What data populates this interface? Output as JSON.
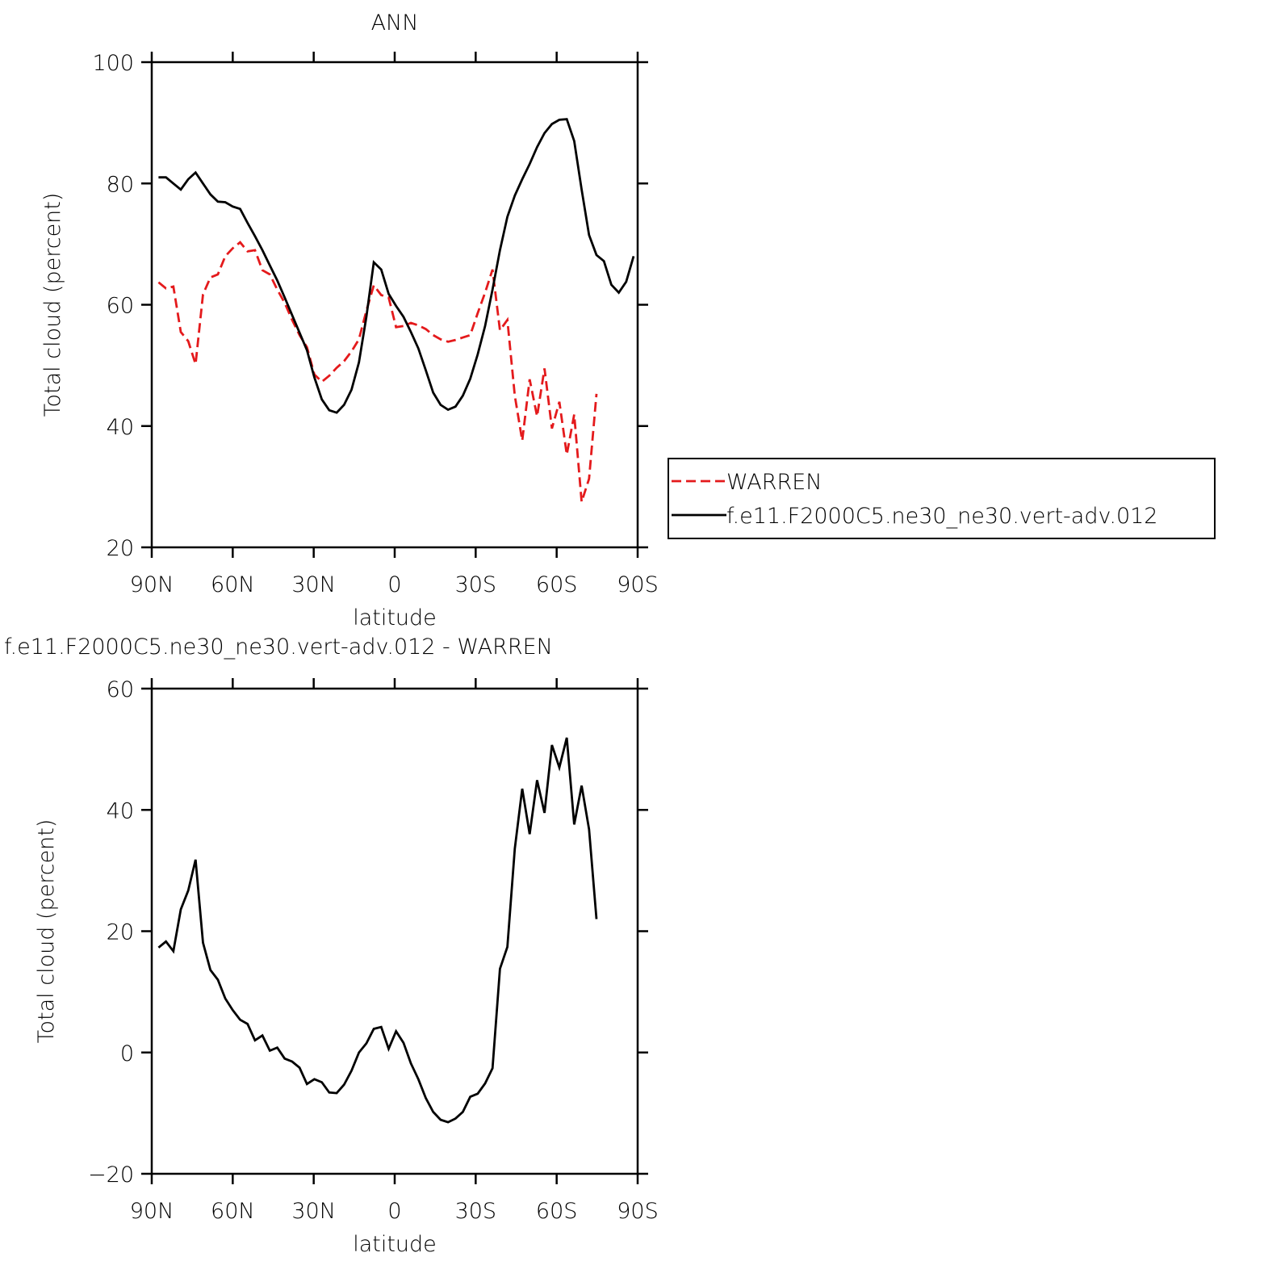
{
  "chart_data": [
    {
      "type": "line",
      "title": "ANN",
      "xlabel": "latitude",
      "ylabel": "Total cloud (percent)",
      "x": [
        87.5,
        84.75,
        82,
        79.25,
        76.5,
        73.75,
        71,
        68.25,
        65.5,
        62.75,
        60,
        57.25,
        54.5,
        51.75,
        49,
        46.25,
        43.5,
        40.75,
        38,
        35.25,
        32.5,
        29.75,
        27,
        24.25,
        21.5,
        18.75,
        16,
        13.25,
        10.5,
        7.75,
        5,
        2.25,
        -0.5,
        -3.25,
        -6,
        -8.75,
        -11.5,
        -14.25,
        -17,
        -19.75,
        -22.5,
        -25.25,
        -28,
        -30.75,
        -33.5,
        -36.25,
        -39,
        -41.75,
        -44.5,
        -47.25,
        -50,
        -52.75,
        -55.5,
        -58.25,
        -61,
        -63.75,
        -66.5,
        -69.25,
        -72,
        -74.75,
        -77.5,
        -80.25,
        -83,
        -85.75,
        -88.5
      ],
      "series": [
        {
          "name": "WARREN",
          "color": "#e41a1c",
          "line_style": "dashed",
          "values": [
            63.7,
            62.7,
            63,
            55.5,
            54,
            50.2,
            61.7,
            64.5,
            65,
            68,
            69.3,
            70.3,
            68.8,
            69,
            65.7,
            65,
            62.5,
            60.3,
            57.5,
            55,
            53,
            48.5,
            47.3,
            48.3,
            49.6,
            50.7,
            52.3,
            54.3,
            59,
            63.2,
            61.6,
            61.2,
            56.3,
            56.5,
            57,
            56.6,
            56,
            55,
            54.3,
            53.9,
            54.2,
            54.6,
            55,
            58.6,
            62,
            65.8,
            55.8,
            57.5,
            45,
            37.6,
            47.7,
            41.6,
            49.5,
            39.6,
            44,
            35.3,
            41.9,
            27.5,
            31.3,
            45.3,
            null,
            null,
            null,
            null,
            null
          ]
        },
        {
          "name": "f.e11.F2000C5.ne30_ne30.vert-adv.012",
          "color": "#000000",
          "line_style": "solid",
          "values": [
            81,
            81,
            80,
            79,
            80.7,
            81.8,
            80,
            78.2,
            77,
            76.9,
            76.2,
            75.8,
            73.5,
            71.3,
            69,
            66.5,
            64,
            61.2,
            58.3,
            55.4,
            52.5,
            48,
            44.4,
            42.6,
            42.2,
            43.5,
            46,
            50.5,
            58,
            67,
            65.8,
            61.8,
            59.8,
            58,
            55.5,
            52.8,
            49.2,
            45.5,
            43.5,
            42.7,
            43.2,
            45,
            47.8,
            51.8,
            56.5,
            62.5,
            69,
            74.5,
            78,
            80.7,
            83.2,
            86,
            88.3,
            89.8,
            90.5,
            90.6,
            87,
            79,
            71.5,
            68.2,
            67.2,
            63.3,
            62,
            63.8,
            68
          ]
        }
      ],
      "xlim": [
        90,
        -90
      ],
      "xticks": [
        {
          "value": 90,
          "label": "90N"
        },
        {
          "value": 60,
          "label": "60N"
        },
        {
          "value": 30,
          "label": "30N"
        },
        0,
        {
          "value": -30,
          "label": "30S"
        },
        {
          "value": -60,
          "label": "60S"
        },
        {
          "value": -90,
          "label": "90S"
        }
      ],
      "ylim": [
        20,
        100
      ],
      "yticks": [
        20,
        40,
        60,
        80,
        100
      ],
      "legend": "outside-right"
    },
    {
      "type": "line",
      "title": "f.e11.F2000C5.ne30_ne30.vert-adv.012 - WARREN",
      "xlabel": "latitude",
      "ylabel": "Total cloud (percent)",
      "x": [
        87.5,
        84.75,
        82,
        79.25,
        76.5,
        73.75,
        71,
        68.25,
        65.5,
        62.75,
        60,
        57.25,
        54.5,
        51.75,
        49,
        46.25,
        43.5,
        40.75,
        38,
        35.25,
        32.5,
        29.75,
        27,
        24.25,
        21.5,
        18.75,
        16,
        13.25,
        10.5,
        7.75,
        5,
        2.25,
        -0.5,
        -3.25,
        -6,
        -8.75,
        -11.5,
        -14.25,
        -17,
        -19.75,
        -22.5,
        -25.25,
        -28,
        -30.75,
        -33.5,
        -36.25,
        -39,
        -41.75,
        -44.5,
        -47.25,
        -50,
        -52.75,
        -55.5,
        -58.25,
        -61,
        -63.75,
        -66.5,
        -69.25,
        -72,
        -74.75,
        -77.5,
        -80.25,
        -83,
        -85.75,
        -88.5
      ],
      "values": [
        17.3,
        18.3,
        16.7,
        23.6,
        26.7,
        31.8,
        18.1,
        13.6,
        12,
        8.9,
        7,
        5.4,
        4.7,
        2,
        2.8,
        0.3,
        0.8,
        -1,
        -1.5,
        -2.5,
        -5.2,
        -4.4,
        -4.9,
        -6.6,
        -6.7,
        -5.3,
        -3,
        0,
        1.5,
        3.9,
        4.2,
        0.6,
        3.5,
        1.6,
        -1.8,
        -4.4,
        -7.5,
        -9.8,
        -11.1,
        -11.5,
        -10.9,
        -9.8,
        -7.3,
        -6.8,
        -5.1,
        -2.6,
        13.8,
        17.4,
        33.6,
        43.5,
        36,
        44.9,
        39.5,
        50.7,
        47,
        51.9,
        37.6,
        44,
        36.8,
        22,
        null,
        null,
        null,
        null,
        null
      ],
      "color": "#000000",
      "xlim": [
        90,
        -90
      ],
      "xticks": [
        {
          "value": 90,
          "label": "90N"
        },
        {
          "value": 60,
          "label": "60N"
        },
        {
          "value": 30,
          "label": "30N"
        },
        0,
        {
          "value": -30,
          "label": "30S"
        },
        {
          "value": -60,
          "label": "60S"
        },
        {
          "value": -90,
          "label": "90S"
        }
      ],
      "ylim": [
        -20,
        60
      ],
      "yticks": [
        {
          "value": -20,
          "label": "−20"
        },
        0,
        20,
        40,
        60
      ]
    }
  ]
}
